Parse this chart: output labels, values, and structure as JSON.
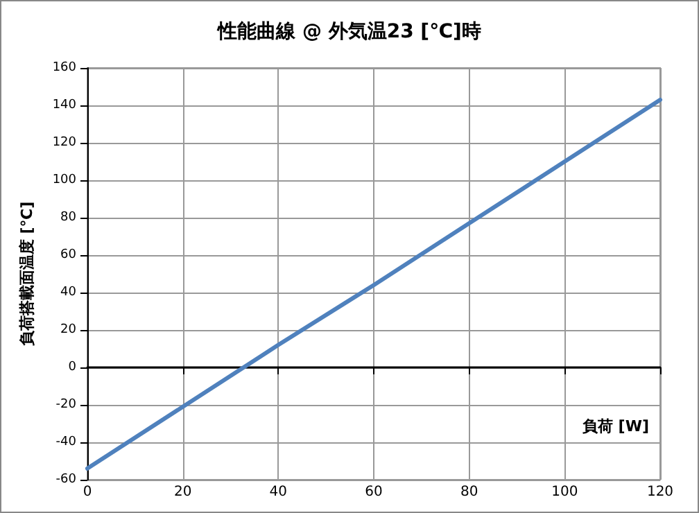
{
  "chart_data": {
    "type": "line",
    "title": "性能曲線 @ 外気温23 [℃]時",
    "xlabel": "負荷 [W]",
    "ylabel": "負荷搭載面温度 [℃]",
    "x": [
      0,
      20,
      40,
      60,
      80,
      100,
      120
    ],
    "series": [
      {
        "color": "#4f81bd",
        "values": [
          -54,
          -21,
          12,
          44,
          77,
          110,
          143
        ]
      }
    ],
    "xlim": [
      0,
      120
    ],
    "xticks": [
      0,
      20,
      40,
      60,
      80,
      100,
      120
    ],
    "ylim": [
      -60,
      160
    ],
    "yticks": [
      -60,
      -40,
      -20,
      0,
      20,
      40,
      60,
      80,
      100,
      120,
      140,
      160
    ],
    "grid": true,
    "marker": "none",
    "line_style": "solid"
  }
}
